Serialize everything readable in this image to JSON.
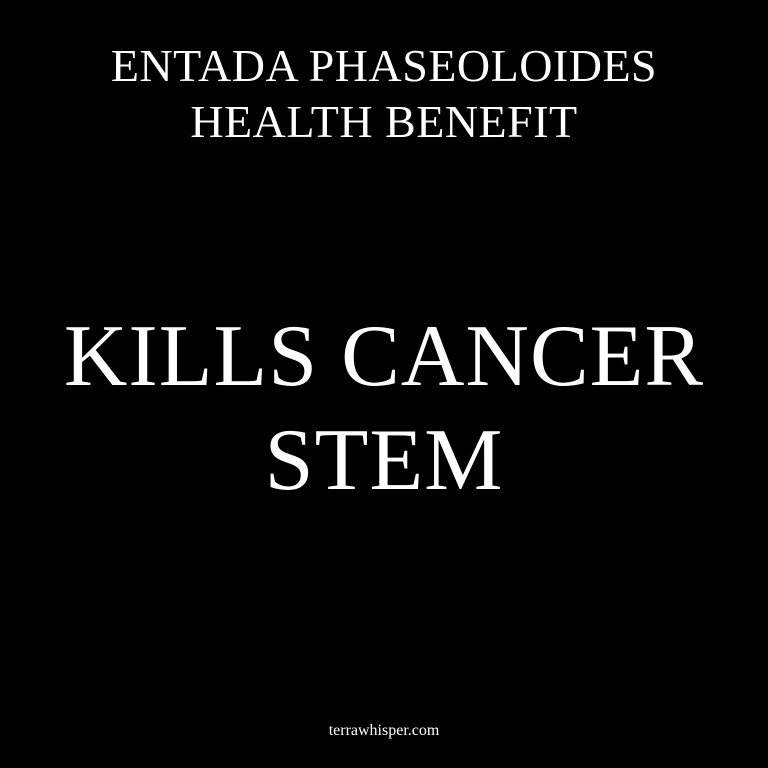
{
  "header": {
    "line1": "ENTADA PHASEOLOIDES",
    "line2": "HEALTH BENEFIT"
  },
  "headline": {
    "line1": "KILLS CANCER",
    "line2": "STEM"
  },
  "footer": {
    "site": "terrawhisper.com"
  },
  "colors": {
    "background": "#000000",
    "text": "#ffffff"
  }
}
